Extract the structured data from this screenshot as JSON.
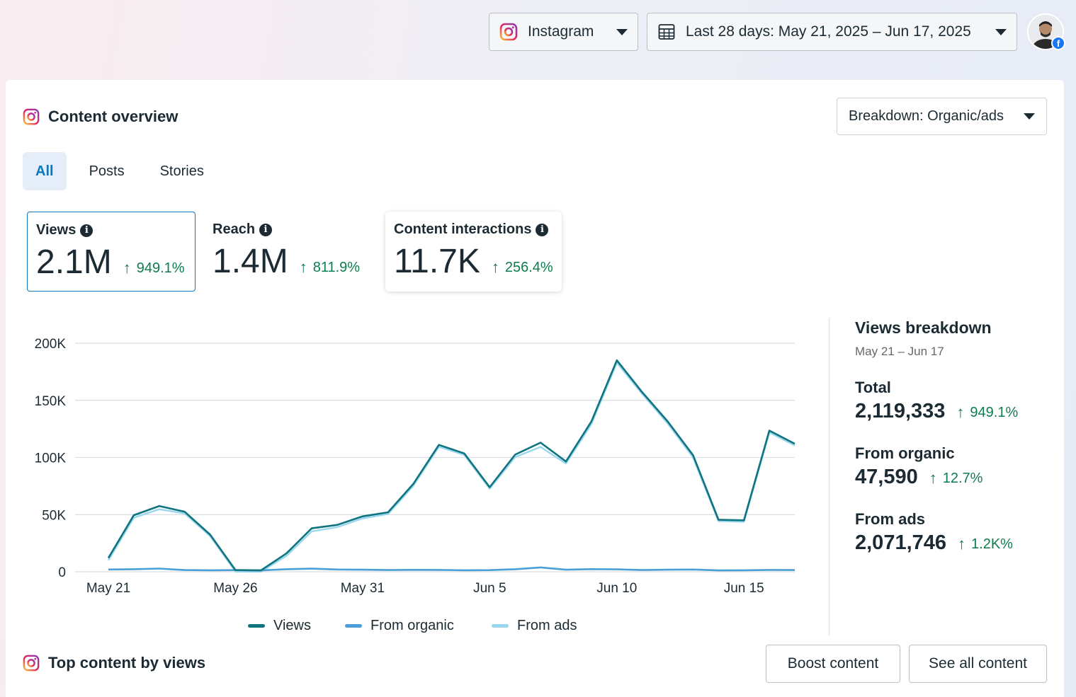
{
  "topbar": {
    "platform_label": "Instagram",
    "date_label": "Last 28 days: May 21, 2025 – Jun 17, 2025"
  },
  "overview": {
    "title": "Content overview",
    "breakdown_label": "Breakdown: Organic/ads",
    "tabs": [
      {
        "label": "All",
        "active": true
      },
      {
        "label": "Posts",
        "active": false
      },
      {
        "label": "Stories",
        "active": false
      }
    ],
    "metrics": [
      {
        "label": "Views",
        "value": "2.1M",
        "growth": "949.1%"
      },
      {
        "label": "Reach",
        "value": "1.4M",
        "growth": "811.9%"
      },
      {
        "label": "Content interactions",
        "value": "11.7K",
        "growth": "256.4%"
      }
    ]
  },
  "breakdown": {
    "title": "Views breakdown",
    "range": "May 21 – Jun 17",
    "total_label": "Total",
    "total_value": "2,119,333",
    "total_growth": "949.1%",
    "organic_label": "From organic",
    "organic_value": "47,590",
    "organic_growth": "12.7%",
    "ads_label": "From ads",
    "ads_value": "2,071,746",
    "ads_growth": "1.2K%"
  },
  "colors": {
    "views": "#0f747f",
    "organic": "#4a9fd8",
    "ads": "#9ad7ef",
    "accent": "#0a78be",
    "positive": "#0d7d4f"
  },
  "chart_data": {
    "type": "line",
    "title": "",
    "xlabel": "",
    "ylabel": "",
    "x": [
      "May 21",
      "May 22",
      "May 23",
      "May 24",
      "May 25",
      "May 26",
      "May 27",
      "May 28",
      "May 29",
      "May 30",
      "May 31",
      "Jun 1",
      "Jun 2",
      "Jun 3",
      "Jun 4",
      "Jun 5",
      "Jun 6",
      "Jun 7",
      "Jun 8",
      "Jun 9",
      "Jun 10",
      "Jun 11",
      "Jun 12",
      "Jun 13",
      "Jun 14",
      "Jun 15",
      "Jun 16",
      "Jun 17"
    ],
    "xtick_labels": [
      "May 21",
      "May 26",
      "May 31",
      "Jun 5",
      "Jun 10",
      "Jun 15"
    ],
    "xtick_indices": [
      0,
      5,
      10,
      15,
      20,
      25
    ],
    "ylim": [
      0,
      200000
    ],
    "ytick_values": [
      0,
      50000,
      100000,
      150000,
      200000
    ],
    "ytick_labels": [
      "0",
      "50K",
      "100K",
      "150K",
      "200K"
    ],
    "series": [
      {
        "name": "Views",
        "values": [
          12000,
          49500,
          57500,
          52500,
          32500,
          1500,
          1200,
          16000,
          38000,
          41000,
          48500,
          52000,
          77000,
          111000,
          103500,
          74000,
          102500,
          113000,
          96500,
          131500,
          185000,
          157000,
          131500,
          102000,
          45500,
          45000,
          123500,
          112000
        ]
      },
      {
        "name": "From organic",
        "values": [
          2000,
          2200,
          2800,
          1500,
          1300,
          1400,
          1200,
          2200,
          2700,
          2000,
          1800,
          1500,
          1700,
          1600,
          1300,
          1400,
          2200,
          3800,
          1800,
          2300,
          2100,
          1500,
          1800,
          2000,
          1200,
          1300,
          1600,
          1500
        ]
      },
      {
        "name": "From ads",
        "values": [
          10000,
          47300,
          54700,
          51000,
          31200,
          100,
          0,
          13800,
          35300,
          39000,
          46700,
          50500,
          75300,
          109400,
          102200,
          72600,
          100300,
          109200,
          94700,
          129200,
          182900,
          155500,
          129700,
          100000,
          44300,
          43700,
          121900,
          110500
        ]
      }
    ],
    "legend": [
      "Views",
      "From organic",
      "From ads"
    ],
    "legend_position": "bottom",
    "grid": true
  },
  "top_content": {
    "title": "Top content by views",
    "boost_label": "Boost content",
    "see_all_label": "See all content"
  }
}
